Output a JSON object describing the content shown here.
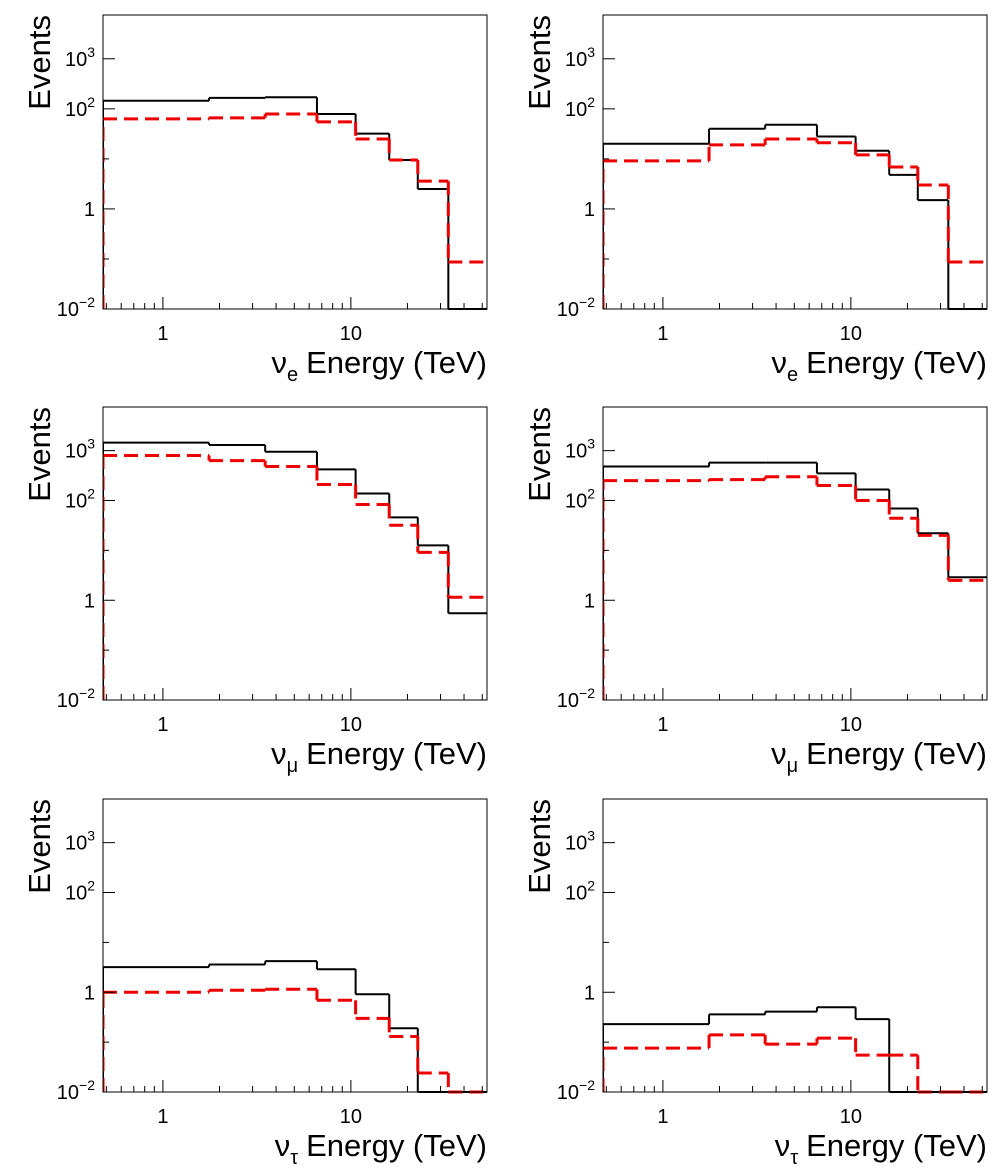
{
  "chart_data": [
    {
      "type": "histogram",
      "ylabel": "Events",
      "xlabel": {
        "main": "ν",
        "sub": "e",
        "rest": "Energy (TeV)"
      },
      "xlog": true,
      "ylog": true,
      "xlim": [
        0.48,
        53
      ],
      "ylim": [
        0.01,
        7500
      ],
      "xticks": [
        1,
        10
      ],
      "xminorticks": [
        0.5,
        0.6,
        0.7,
        0.8,
        0.9,
        2,
        3,
        4,
        5,
        6,
        7,
        8,
        9,
        20,
        30,
        40,
        50
      ],
      "yticks": [
        {
          "value": 0.01,
          "label": "10",
          "sup": "−2"
        },
        1,
        {
          "value": 100,
          "label": "10",
          "sup": "2"
        },
        {
          "value": 1000,
          "label": "10",
          "sup": "3"
        }
      ],
      "yminorticks": [
        0.1,
        10
      ],
      "bins": [
        0.48,
        1.76,
        3.5,
        6.6,
        10.6,
        16,
        22.7,
        33,
        53
      ],
      "series": [
        {
          "color": "#000000",
          "dashed": false,
          "values": [
            145,
            166,
            170,
            79,
            32,
            9.5,
            2.5,
            0
          ]
        },
        {
          "color": "#ee0000",
          "dashed": true,
          "values": [
            63,
            66,
            79,
            55,
            25,
            9.5,
            3.6,
            0.087
          ]
        }
      ]
    },
    {
      "type": "histogram",
      "ylabel": "Events",
      "xlabel": {
        "main": "ν",
        "sub": "e",
        "rest": "Energy (TeV)"
      },
      "xlog": true,
      "ylog": true,
      "xlim": [
        0.48,
        53
      ],
      "ylim": [
        0.01,
        7500
      ],
      "xticks": [
        1,
        10
      ],
      "xminorticks": [
        0.5,
        0.6,
        0.7,
        0.8,
        0.9,
        2,
        3,
        4,
        5,
        6,
        7,
        8,
        9,
        20,
        30,
        40,
        50
      ],
      "yticks": [
        {
          "value": 0.01,
          "label": "10",
          "sup": "−2"
        },
        1,
        {
          "value": 100,
          "label": "10",
          "sup": "2"
        },
        {
          "value": 1000,
          "label": "10",
          "sup": "3"
        }
      ],
      "yminorticks": [
        0.1,
        10
      ],
      "bins": [
        0.48,
        1.76,
        3.5,
        6.6,
        10.6,
        16,
        22.7,
        33,
        53
      ],
      "series": [
        {
          "color": "#000000",
          "dashed": false,
          "values": [
            20,
            40,
            48,
            28,
            14.5,
            4.8,
            1.5,
            0
          ]
        },
        {
          "color": "#ee0000",
          "dashed": true,
          "values": [
            9.1,
            19,
            25,
            21,
            12,
            6.9,
            3,
            0.087
          ]
        }
      ]
    },
    {
      "type": "histogram",
      "ylabel": "Events",
      "xlabel": {
        "main": "ν",
        "sub": "μ",
        "rest": "Energy (TeV)"
      },
      "xlog": true,
      "ylog": true,
      "xlim": [
        0.48,
        53
      ],
      "ylim": [
        0.01,
        7500
      ],
      "xticks": [
        1,
        10
      ],
      "xminorticks": [
        0.5,
        0.6,
        0.7,
        0.8,
        0.9,
        2,
        3,
        4,
        5,
        6,
        7,
        8,
        9,
        20,
        30,
        40,
        50
      ],
      "yticks": [
        {
          "value": 0.01,
          "label": "10",
          "sup": "−2"
        },
        1,
        {
          "value": 100,
          "label": "10",
          "sup": "2"
        },
        {
          "value": 1000,
          "label": "10",
          "sup": "3"
        }
      ],
      "yminorticks": [
        0.1,
        10
      ],
      "bins": [
        0.48,
        1.76,
        3.5,
        6.6,
        10.6,
        16,
        22.7,
        33,
        53
      ],
      "series": [
        {
          "color": "#000000",
          "dashed": false,
          "values": [
            1450,
            1300,
            950,
            420,
            138,
            46,
            12.6,
            0.55
          ]
        },
        {
          "color": "#ee0000",
          "dashed": true,
          "values": [
            800,
            630,
            480,
            210,
            83,
            32,
            9.1,
            1.15
          ]
        }
      ]
    },
    {
      "type": "histogram",
      "ylabel": "Events",
      "xlabel": {
        "main": "ν",
        "sub": "μ",
        "rest": "Energy (TeV)"
      },
      "xlog": true,
      "ylog": true,
      "xlim": [
        0.48,
        53
      ],
      "ylim": [
        0.01,
        7500
      ],
      "xticks": [
        1,
        10
      ],
      "xminorticks": [
        0.5,
        0.6,
        0.7,
        0.8,
        0.9,
        2,
        3,
        4,
        5,
        6,
        7,
        8,
        9,
        20,
        30,
        40,
        50
      ],
      "yticks": [
        {
          "value": 0.01,
          "label": "10",
          "sup": "−2"
        },
        1,
        {
          "value": 100,
          "label": "10",
          "sup": "2"
        },
        {
          "value": 1000,
          "label": "10",
          "sup": "3"
        }
      ],
      "yminorticks": [
        0.1,
        10
      ],
      "bins": [
        0.48,
        1.76,
        3.5,
        6.6,
        10.6,
        16,
        22.7,
        33,
        53
      ],
      "series": [
        {
          "color": "#000000",
          "dashed": false,
          "values": [
            480,
            575,
            575,
            350,
            166,
            69,
            22,
            2.9
          ]
        },
        {
          "color": "#ee0000",
          "dashed": true,
          "values": [
            250,
            263,
            300,
            200,
            100,
            44,
            20,
            2.5
          ]
        }
      ]
    },
    {
      "type": "histogram",
      "ylabel": "Events",
      "xlabel": {
        "main": "ν",
        "sub": "τ",
        "rest": "Energy (TeV)"
      },
      "xlog": true,
      "ylog": true,
      "xlim": [
        0.48,
        53
      ],
      "ylim": [
        0.01,
        7500
      ],
      "xticks": [
        1,
        10
      ],
      "xminorticks": [
        0.5,
        0.6,
        0.7,
        0.8,
        0.9,
        2,
        3,
        4,
        5,
        6,
        7,
        8,
        9,
        20,
        30,
        40,
        50
      ],
      "yticks": [
        {
          "value": 0.01,
          "label": "10",
          "sup": "−2"
        },
        1,
        {
          "value": 100,
          "label": "10",
          "sup": "2"
        },
        {
          "value": 1000,
          "label": "10",
          "sup": "3"
        }
      ],
      "yminorticks": [
        0.1,
        10
      ],
      "bins": [
        0.48,
        1.76,
        3.5,
        6.6,
        10.6,
        16,
        22.7,
        33,
        53
      ],
      "series": [
        {
          "color": "#000000",
          "dashed": false,
          "values": [
            3.2,
            3.6,
            4.2,
            2.9,
            0.91,
            0.19,
            0,
            0
          ]
        },
        {
          "color": "#ee0000",
          "dashed": true,
          "values": [
            1.0,
            1.1,
            1.15,
            0.69,
            0.3,
            0.13,
            0.024,
            0
          ]
        }
      ]
    },
    {
      "type": "histogram",
      "ylabel": "Events",
      "xlabel": {
        "main": "ν",
        "sub": "τ",
        "rest": "Energy (TeV)"
      },
      "xlog": true,
      "ylog": true,
      "xlim": [
        0.48,
        53
      ],
      "ylim": [
        0.01,
        7500
      ],
      "xticks": [
        1,
        10
      ],
      "xminorticks": [
        0.5,
        0.6,
        0.7,
        0.8,
        0.9,
        2,
        3,
        4,
        5,
        6,
        7,
        8,
        9,
        20,
        30,
        40,
        50
      ],
      "yticks": [
        {
          "value": 0.01,
          "label": "10",
          "sup": "−2"
        },
        1,
        {
          "value": 100,
          "label": "10",
          "sup": "2"
        },
        {
          "value": 1000,
          "label": "10",
          "sup": "3"
        }
      ],
      "yminorticks": [
        0.1,
        10
      ],
      "bins": [
        0.48,
        1.76,
        3.5,
        6.6,
        10.6,
        16,
        22.7,
        33,
        53
      ],
      "series": [
        {
          "color": "#000000",
          "dashed": false,
          "values": [
            0.23,
            0.36,
            0.41,
            0.5,
            0.29,
            0,
            0,
            0
          ]
        },
        {
          "color": "#ee0000",
          "dashed": true,
          "values": [
            0.076,
            0.14,
            0.091,
            0.12,
            0.055,
            0.055,
            0,
            0
          ]
        }
      ]
    }
  ]
}
